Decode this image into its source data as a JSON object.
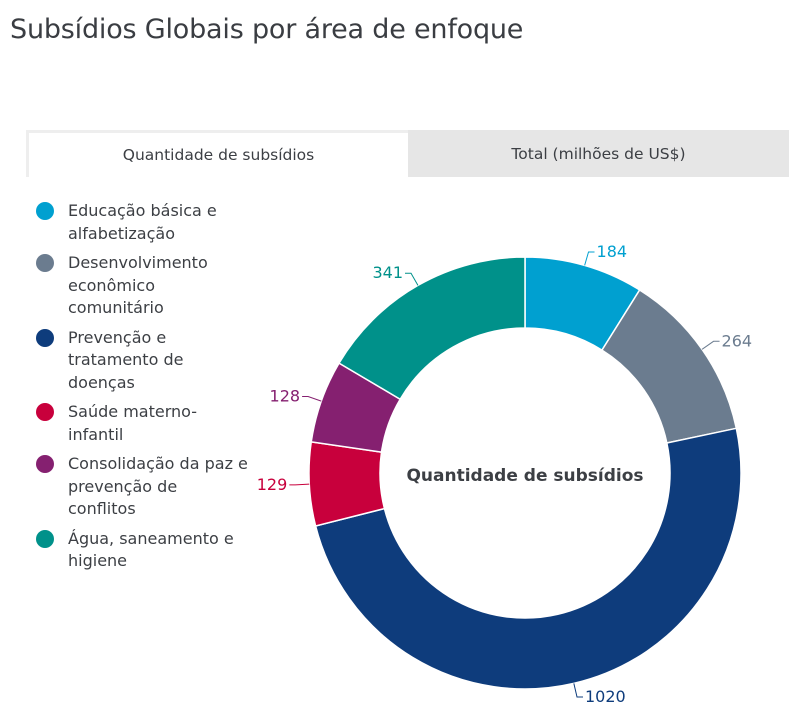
{
  "title": "Subsídios Globais por área de enfoque",
  "tabs": [
    {
      "label": "Quantidade de subsídios",
      "active": true
    },
    {
      "label": "Total (milhões de US$)",
      "active": false
    }
  ],
  "chart_data": {
    "type": "pie",
    "variant": "donut",
    "title": "Subsídios Globais por área de enfoque",
    "center_label": "Quantidade de subsídios",
    "legend_position": "left",
    "start_angle": "top, clockwise",
    "series": [
      {
        "name": "Educação básica e alfabetização",
        "legend_lines": [
          "Educação básica e",
          "alfabetização"
        ],
        "value": 184,
        "color": "#00a0d0"
      },
      {
        "name": "Desenvolvimento econômico comunitário",
        "legend_lines": [
          "Desenvolvimento",
          "econômico",
          "comunitário"
        ],
        "value": 264,
        "color": "#6b7c8f"
      },
      {
        "name": "Prevenção e tratamento de doenças",
        "legend_lines": [
          "Prevenção e",
          "tratamento de",
          "doenças"
        ],
        "value": 1020,
        "color": "#0e3c7c"
      },
      {
        "name": "Saúde materno-infantil",
        "legend_lines": [
          "Saúde materno-",
          "infantil"
        ],
        "value": 129,
        "color": "#c8003c"
      },
      {
        "name": "Consolidação da paz e prevenção de conflitos",
        "legend_lines": [
          "Consolidação da paz e",
          "prevenção de",
          "conflitos"
        ],
        "value": 128,
        "color": "#852070"
      },
      {
        "name": "Água, saneamento e higiene",
        "legend_lines": [
          "Água, saneamento e",
          "higiene"
        ],
        "value": 341,
        "color": "#00918a"
      }
    ]
  }
}
